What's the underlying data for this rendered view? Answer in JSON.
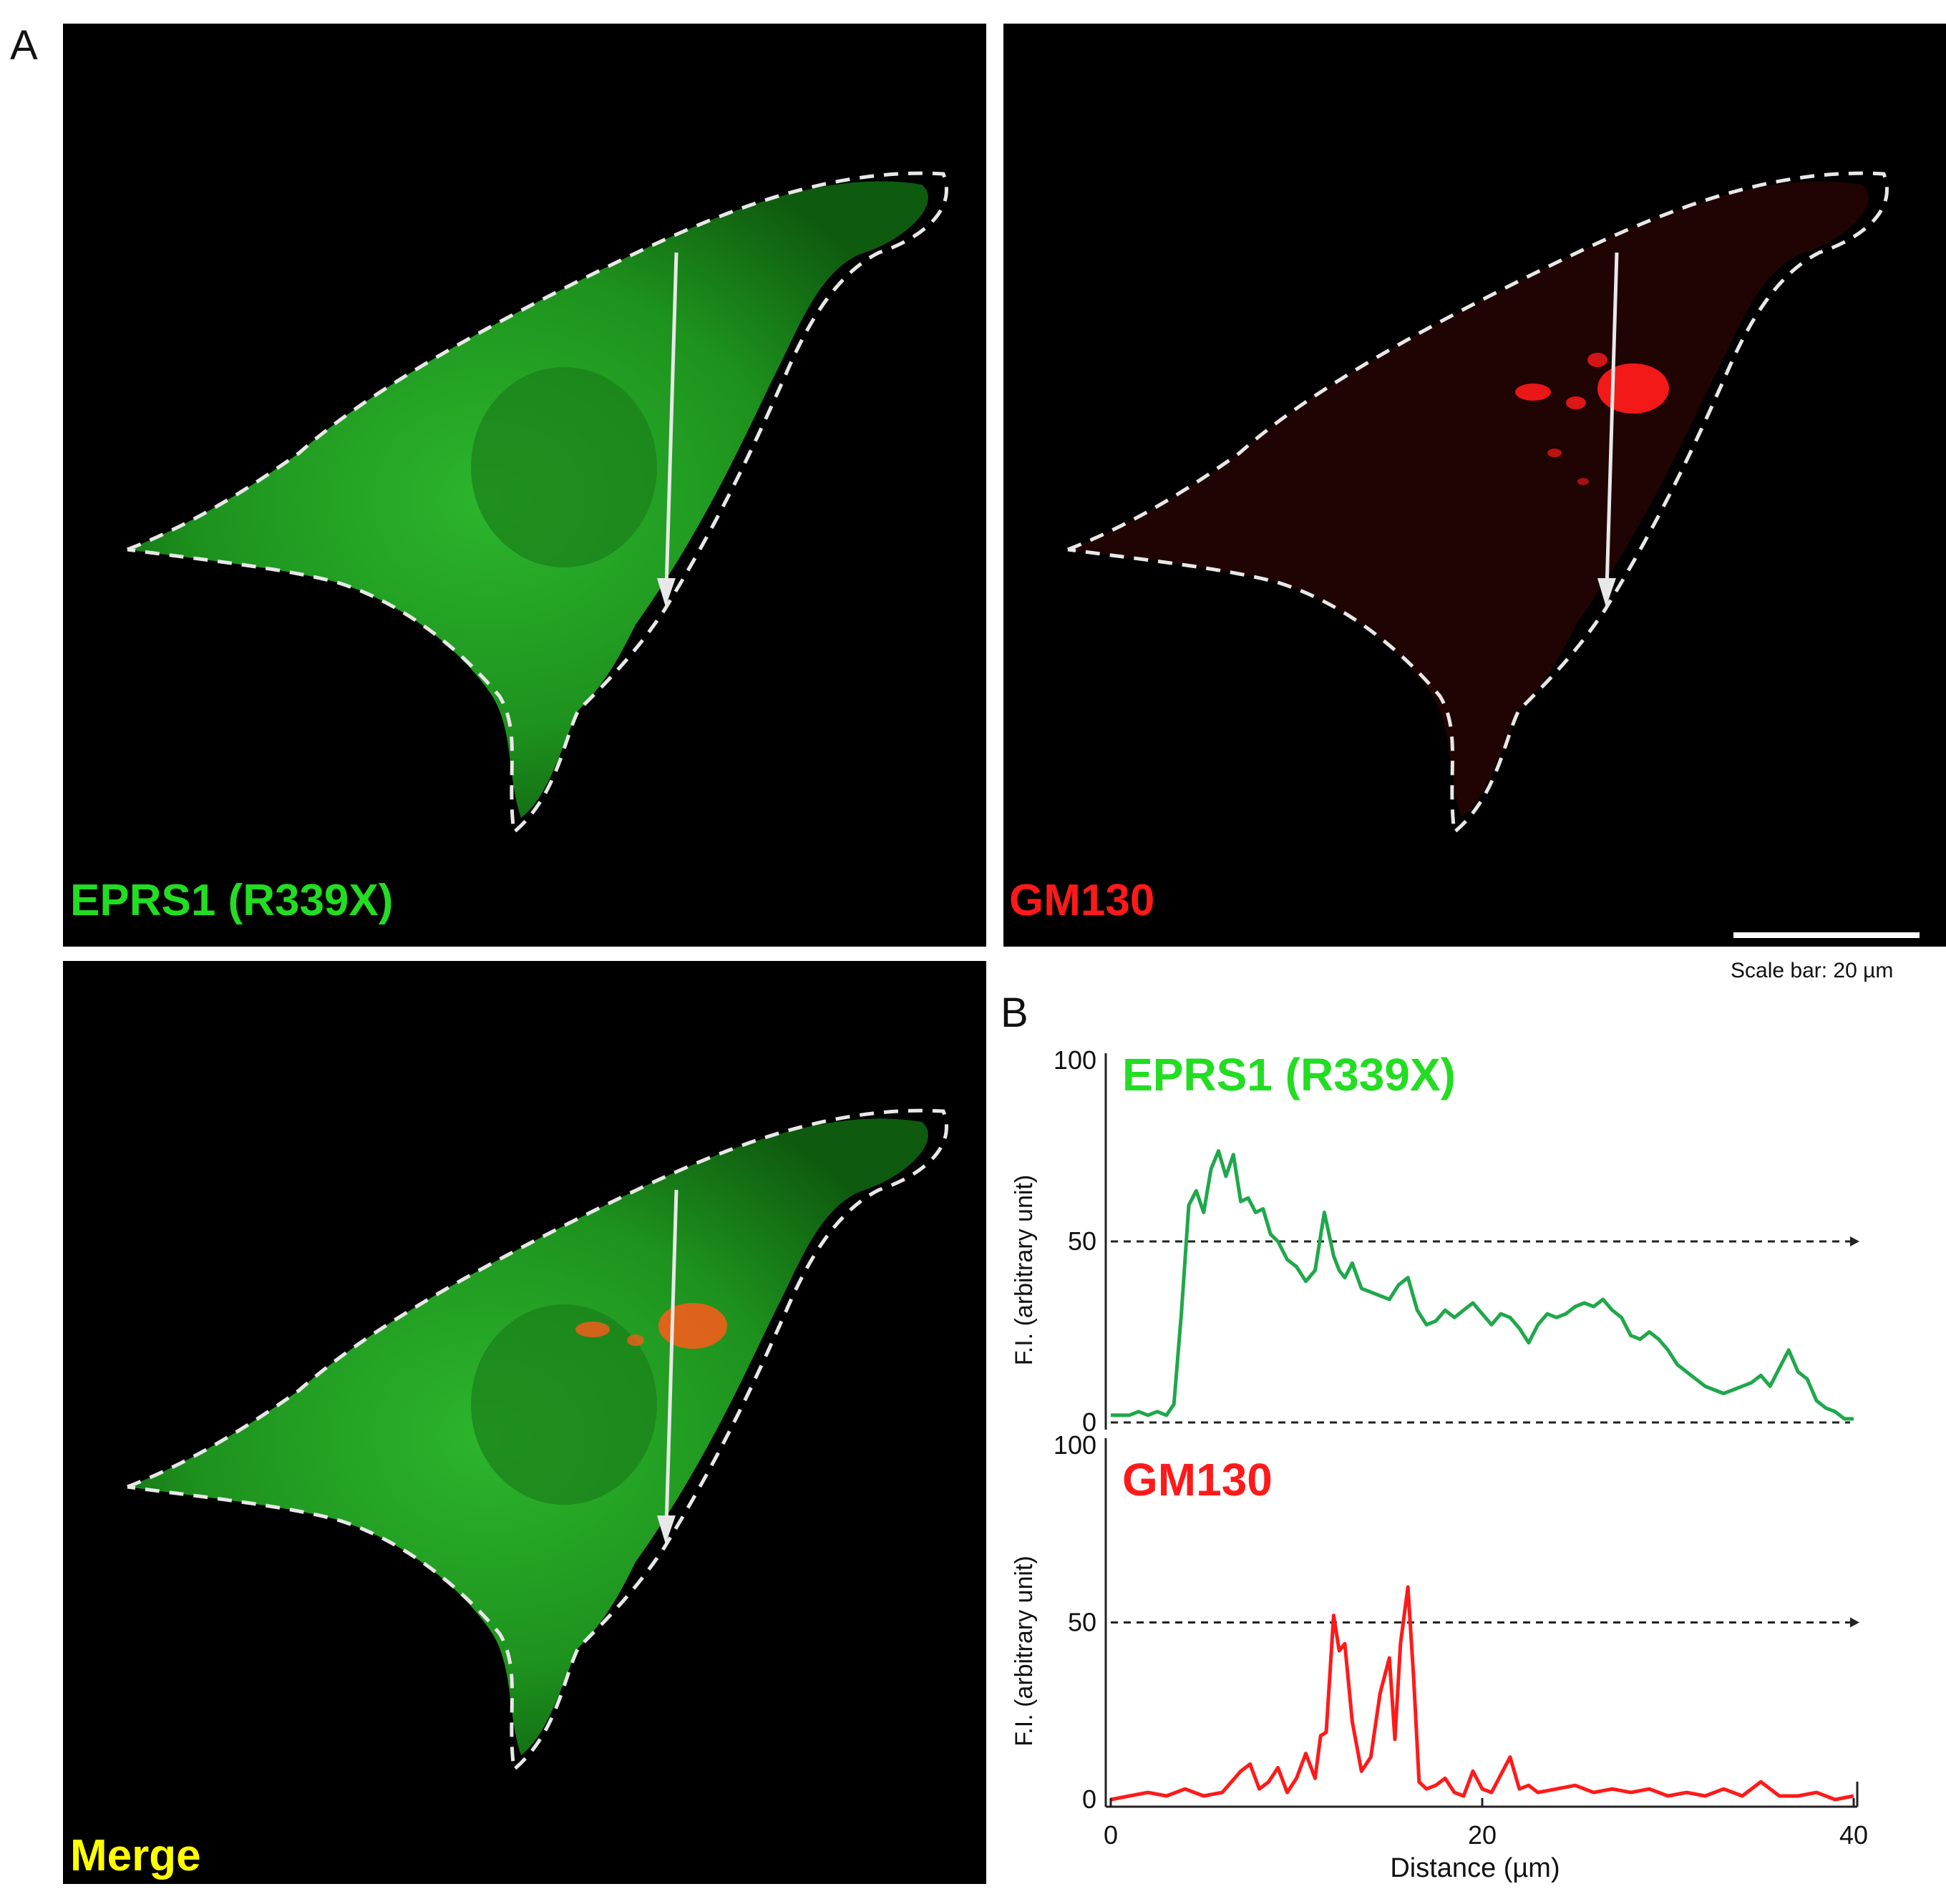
{
  "figure": {
    "panel_a_letter": "A",
    "panel_b_letter": "B",
    "images": [
      {
        "label": "EPRS1 (R339X)",
        "label_color": "#22dd22",
        "channel": "green"
      },
      {
        "label": "GM130",
        "label_color": "#ff1a1a",
        "channel": "red"
      },
      {
        "label": "Merge",
        "label_color": "#ffff00",
        "channel": "merge"
      }
    ],
    "scale_bar": {
      "text": "Scale bar: 20 µm",
      "length_um": 20
    }
  },
  "chart_data": [
    {
      "type": "line",
      "title": "EPRS1 (R339X)",
      "title_color": "#22dd22",
      "line_color": "#1fa84a",
      "ylabel": "F.I. (arbitrary unit)",
      "xlabel": "",
      "xlim": [
        0,
        40
      ],
      "ylim": [
        0,
        100
      ],
      "yticks": [
        0,
        50,
        100
      ],
      "reference_lines": [
        50,
        0
      ],
      "x": [
        0,
        0.5,
        1,
        1.5,
        2,
        2.5,
        3,
        3.4,
        3.8,
        4.2,
        4.6,
        5,
        5.4,
        5.8,
        6.2,
        6.6,
        7,
        7.4,
        7.8,
        8.2,
        8.6,
        9,
        9.5,
        10,
        10.5,
        11,
        11.5,
        12,
        12.3,
        12.6,
        13,
        13.5,
        14,
        14.5,
        15,
        15.5,
        16,
        16.5,
        17,
        17.5,
        18,
        18.5,
        19,
        19.5,
        20,
        20.5,
        21,
        21.5,
        22,
        22.5,
        23,
        23.5,
        24,
        24.5,
        25,
        25.5,
        26,
        26.5,
        27,
        27.5,
        28,
        28.5,
        29,
        29.5,
        30,
        30.5,
        31,
        31.5,
        32,
        32.5,
        33,
        33.5,
        34,
        34.5,
        35,
        35.5,
        36,
        36.5,
        37,
        37.5,
        38,
        38.5,
        39,
        39.5,
        40
      ],
      "values": [
        2,
        2,
        2,
        3,
        2,
        3,
        2,
        5,
        30,
        60,
        64,
        58,
        70,
        75,
        68,
        74,
        61,
        62,
        58,
        59,
        52,
        50,
        45,
        43,
        39,
        42,
        58,
        46,
        42,
        40,
        44,
        37,
        36,
        35,
        34,
        38,
        40,
        31,
        27,
        28,
        31,
        29,
        31,
        33,
        30,
        27,
        30,
        29,
        26,
        22,
        27,
        30,
        29,
        30,
        32,
        33,
        32,
        34,
        31,
        29,
        24,
        23,
        25,
        23,
        20,
        16,
        14,
        12,
        10,
        9,
        8,
        9,
        10,
        11,
        13,
        10,
        15,
        20,
        14,
        12,
        6,
        4,
        3,
        1,
        1
      ],
      "note": ""
    },
    {
      "type": "line",
      "title": "GM130",
      "title_color": "#ff1a1a",
      "line_color": "#ff1a1a",
      "ylabel": "F.I. (arbitrary unit)",
      "xlabel": "Distance (µm)",
      "xlim": [
        0,
        40
      ],
      "ylim": [
        0,
        100
      ],
      "xticks": [
        0,
        20,
        40
      ],
      "yticks": [
        0,
        50,
        100
      ],
      "reference_lines": [
        50
      ],
      "x": [
        0,
        1,
        2,
        3,
        4,
        5,
        6,
        7,
        7.5,
        8,
        8.5,
        9,
        9.5,
        10,
        10.5,
        11,
        11.3,
        11.6,
        12,
        12.3,
        12.6,
        13,
        13.5,
        14,
        14.5,
        15,
        15.3,
        15.6,
        16,
        16.3,
        16.6,
        17,
        17.5,
        18,
        18.5,
        19,
        19.5,
        20,
        20.5,
        21,
        21.5,
        22,
        22.5,
        23,
        24,
        25,
        26,
        27,
        28,
        29,
        30,
        31,
        32,
        33,
        34,
        35,
        36,
        37,
        38,
        39,
        40
      ],
      "values": [
        0,
        1,
        2,
        1,
        3,
        1,
        2,
        8,
        10,
        3,
        5,
        9,
        2,
        6,
        13,
        6,
        18,
        19,
        52,
        42,
        44,
        22,
        8,
        12,
        30,
        40,
        17,
        44,
        60,
        35,
        5,
        3,
        4,
        6,
        2,
        1,
        8,
        3,
        2,
        7,
        12,
        3,
        4,
        2,
        3,
        4,
        2,
        3,
        2,
        3,
        1,
        2,
        1,
        3,
        1,
        5,
        1,
        1,
        2,
        0,
        1
      ]
    }
  ]
}
